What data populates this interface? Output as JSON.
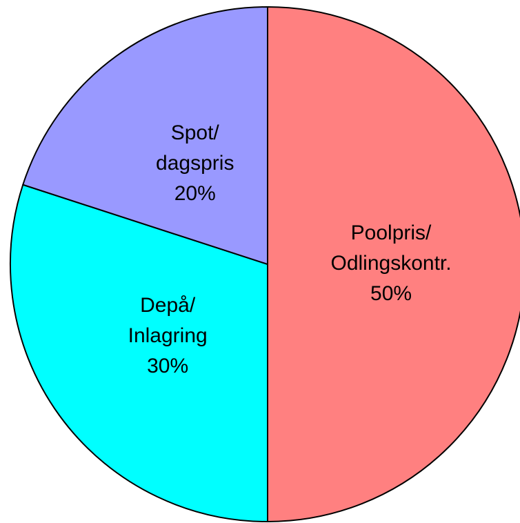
{
  "chart_data": {
    "type": "pie",
    "categories": [
      "Poolpris/\nOdlingskontr.",
      "Depå/\nInlagring",
      "Spot/\ndagspris"
    ],
    "values": [
      50,
      30,
      20
    ],
    "value_labels": [
      "50%",
      "30%",
      "20%"
    ],
    "colors": [
      "#ff8080",
      "#00ffff",
      "#9999ff"
    ]
  }
}
